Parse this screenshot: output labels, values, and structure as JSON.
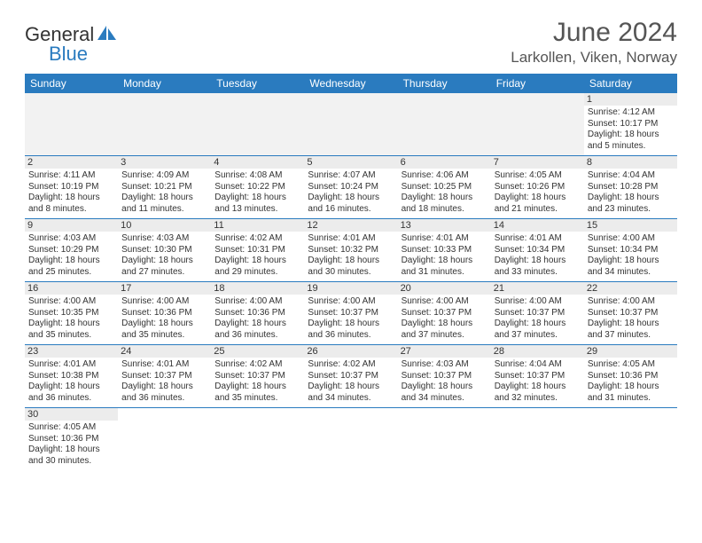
{
  "logo": {
    "general": "General",
    "blue": "Blue"
  },
  "title": "June 2024",
  "subtitle": "Larkollen, Viken, Norway",
  "colors": {
    "header_bg": "#2a7bbf",
    "header_fg": "#ffffff",
    "daynum_bg": "#ececec",
    "cell_border": "#2a7bbf",
    "text": "#333333",
    "title_color": "#555555"
  },
  "weekdays": [
    "Sunday",
    "Monday",
    "Tuesday",
    "Wednesday",
    "Thursday",
    "Friday",
    "Saturday"
  ],
  "first_weekday_index": 6,
  "days_in_month": 30,
  "days": {
    "1": {
      "sunrise": "4:12 AM",
      "sunset": "10:17 PM",
      "daylight": "18 hours and 5 minutes."
    },
    "2": {
      "sunrise": "4:11 AM",
      "sunset": "10:19 PM",
      "daylight": "18 hours and 8 minutes."
    },
    "3": {
      "sunrise": "4:09 AM",
      "sunset": "10:21 PM",
      "daylight": "18 hours and 11 minutes."
    },
    "4": {
      "sunrise": "4:08 AM",
      "sunset": "10:22 PM",
      "daylight": "18 hours and 13 minutes."
    },
    "5": {
      "sunrise": "4:07 AM",
      "sunset": "10:24 PM",
      "daylight": "18 hours and 16 minutes."
    },
    "6": {
      "sunrise": "4:06 AM",
      "sunset": "10:25 PM",
      "daylight": "18 hours and 18 minutes."
    },
    "7": {
      "sunrise": "4:05 AM",
      "sunset": "10:26 PM",
      "daylight": "18 hours and 21 minutes."
    },
    "8": {
      "sunrise": "4:04 AM",
      "sunset": "10:28 PM",
      "daylight": "18 hours and 23 minutes."
    },
    "9": {
      "sunrise": "4:03 AM",
      "sunset": "10:29 PM",
      "daylight": "18 hours and 25 minutes."
    },
    "10": {
      "sunrise": "4:03 AM",
      "sunset": "10:30 PM",
      "daylight": "18 hours and 27 minutes."
    },
    "11": {
      "sunrise": "4:02 AM",
      "sunset": "10:31 PM",
      "daylight": "18 hours and 29 minutes."
    },
    "12": {
      "sunrise": "4:01 AM",
      "sunset": "10:32 PM",
      "daylight": "18 hours and 30 minutes."
    },
    "13": {
      "sunrise": "4:01 AM",
      "sunset": "10:33 PM",
      "daylight": "18 hours and 31 minutes."
    },
    "14": {
      "sunrise": "4:01 AM",
      "sunset": "10:34 PM",
      "daylight": "18 hours and 33 minutes."
    },
    "15": {
      "sunrise": "4:00 AM",
      "sunset": "10:34 PM",
      "daylight": "18 hours and 34 minutes."
    },
    "16": {
      "sunrise": "4:00 AM",
      "sunset": "10:35 PM",
      "daylight": "18 hours and 35 minutes."
    },
    "17": {
      "sunrise": "4:00 AM",
      "sunset": "10:36 PM",
      "daylight": "18 hours and 35 minutes."
    },
    "18": {
      "sunrise": "4:00 AM",
      "sunset": "10:36 PM",
      "daylight": "18 hours and 36 minutes."
    },
    "19": {
      "sunrise": "4:00 AM",
      "sunset": "10:37 PM",
      "daylight": "18 hours and 36 minutes."
    },
    "20": {
      "sunrise": "4:00 AM",
      "sunset": "10:37 PM",
      "daylight": "18 hours and 37 minutes."
    },
    "21": {
      "sunrise": "4:00 AM",
      "sunset": "10:37 PM",
      "daylight": "18 hours and 37 minutes."
    },
    "22": {
      "sunrise": "4:00 AM",
      "sunset": "10:37 PM",
      "daylight": "18 hours and 37 minutes."
    },
    "23": {
      "sunrise": "4:01 AM",
      "sunset": "10:38 PM",
      "daylight": "18 hours and 36 minutes."
    },
    "24": {
      "sunrise": "4:01 AM",
      "sunset": "10:37 PM",
      "daylight": "18 hours and 36 minutes."
    },
    "25": {
      "sunrise": "4:02 AM",
      "sunset": "10:37 PM",
      "daylight": "18 hours and 35 minutes."
    },
    "26": {
      "sunrise": "4:02 AM",
      "sunset": "10:37 PM",
      "daylight": "18 hours and 34 minutes."
    },
    "27": {
      "sunrise": "4:03 AM",
      "sunset": "10:37 PM",
      "daylight": "18 hours and 34 minutes."
    },
    "28": {
      "sunrise": "4:04 AM",
      "sunset": "10:37 PM",
      "daylight": "18 hours and 32 minutes."
    },
    "29": {
      "sunrise": "4:05 AM",
      "sunset": "10:36 PM",
      "daylight": "18 hours and 31 minutes."
    },
    "30": {
      "sunrise": "4:05 AM",
      "sunset": "10:36 PM",
      "daylight": "18 hours and 30 minutes."
    }
  },
  "labels": {
    "sunrise": "Sunrise:",
    "sunset": "Sunset:",
    "daylight": "Daylight:"
  }
}
